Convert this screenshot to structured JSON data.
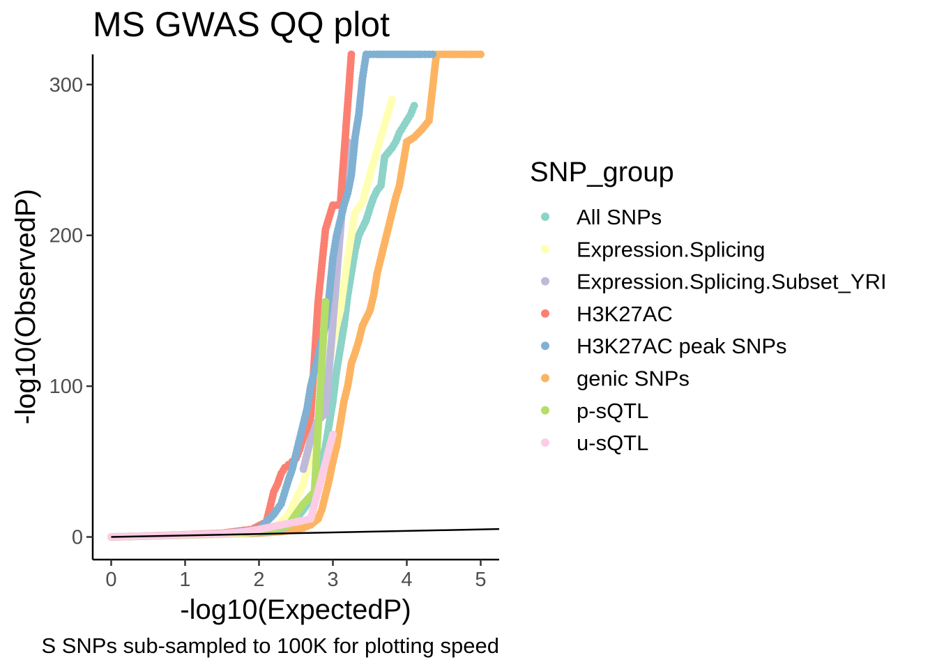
{
  "chart_data": {
    "type": "scatter",
    "title": "MS GWAS QQ plot",
    "xlabel": "-log10(ExpectedP)",
    "ylabel": "-log10(ObservedP)",
    "caption": "S SNPs sub-sampled to 100K for plotting speed",
    "xlim": [
      -0.25,
      5.25
    ],
    "ylim": [
      -15,
      320
    ],
    "x_ticks": [
      0,
      1,
      2,
      3,
      4,
      5
    ],
    "y_ticks": [
      0,
      100,
      200,
      300
    ],
    "grid": false,
    "reference_line": {
      "x": [
        0,
        5.25
      ],
      "y": [
        0,
        5.25
      ]
    },
    "legend": {
      "title": "SNP_group",
      "placement": "right",
      "entries": [
        {
          "name": "All SNPs",
          "color": "#8DD3C7"
        },
        {
          "name": "Expression.Splicing",
          "color": "#FFFFB3"
        },
        {
          "name": "Expression.Splicing.Subset_YRI",
          "color": "#BEBADA"
        },
        {
          "name": "H3K27AC",
          "color": "#FB8072"
        },
        {
          "name": "H3K27AC peak SNPs",
          "color": "#80B1D3"
        },
        {
          "name": "genic SNPs",
          "color": "#FDB462"
        },
        {
          "name": "p-sQTL",
          "color": "#B3DE69"
        },
        {
          "name": "u-sQTL",
          "color": "#FCCDE5"
        }
      ]
    },
    "series": [
      {
        "name": "genic SNPs",
        "color": "#FDB462",
        "x": [
          0.0,
          0.5,
          1.0,
          1.5,
          2.0,
          2.3,
          2.5,
          2.6,
          2.7,
          2.8,
          2.85,
          2.9,
          2.95,
          3.0,
          3.05,
          3.1,
          3.15,
          3.2,
          3.25,
          3.3,
          3.35,
          3.4,
          3.45,
          3.5,
          3.55,
          3.6,
          3.65,
          3.7,
          3.75,
          3.8,
          3.85,
          3.9,
          4.0,
          4.1,
          4.2,
          4.3,
          4.4,
          4.5,
          4.7,
          5.0
        ],
        "y": [
          0.0,
          0.6,
          1.2,
          1.8,
          2.5,
          3.5,
          5,
          6,
          8,
          12,
          18,
          28,
          38,
          50,
          60,
          75,
          90,
          100,
          115,
          122,
          130,
          140,
          145,
          150,
          160,
          175,
          185,
          195,
          205,
          215,
          225,
          233,
          262,
          265,
          270,
          276,
          320,
          320,
          320,
          320
        ]
      },
      {
        "name": "All SNPs",
        "color": "#8DD3C7",
        "x": [
          0.0,
          0.5,
          1.0,
          1.5,
          2.0,
          2.3,
          2.5,
          2.6,
          2.7,
          2.75,
          2.8,
          2.85,
          2.9,
          2.95,
          3.0,
          3.05,
          3.1,
          3.15,
          3.2,
          3.25,
          3.3,
          3.35,
          3.4,
          3.45,
          3.5,
          3.55,
          3.6,
          3.65,
          3.7,
          3.75,
          3.8,
          3.85,
          3.9,
          3.95,
          4.0,
          4.05,
          4.1
        ],
        "y": [
          0.0,
          0.6,
          1.2,
          1.9,
          3,
          5,
          12,
          18,
          25,
          30,
          40,
          50,
          60,
          75,
          90,
          110,
          125,
          140,
          160,
          175,
          190,
          200,
          205,
          210,
          218,
          225,
          230,
          233,
          252,
          255,
          258,
          262,
          268,
          272,
          276,
          280,
          286
        ]
      },
      {
        "name": "Expression.Splicing",
        "color": "#FFFFB3",
        "x": [
          0.0,
          0.6,
          1.2,
          1.8,
          2.2,
          2.4,
          2.5,
          2.6,
          2.7,
          2.8,
          2.9,
          3.0,
          3.1,
          3.2,
          3.3,
          3.4,
          3.5,
          3.8
        ],
        "y": [
          0.0,
          0.7,
          1.4,
          2.5,
          5,
          15,
          25,
          35,
          55,
          75,
          100,
          130,
          150,
          185,
          215,
          222,
          240,
          290
        ]
      },
      {
        "name": "Expression.Splicing.Subset_YRI",
        "color": "#BEBADA",
        "x": [
          2.6,
          2.75,
          2.9,
          3.2
        ],
        "y": [
          45,
          75,
          82,
          262
        ]
      },
      {
        "name": "H3K27AC",
        "color": "#FB8072",
        "x": [
          0.0,
          0.5,
          1.0,
          1.5,
          1.9,
          2.1,
          2.15,
          2.2,
          2.25,
          2.3,
          2.35,
          2.4,
          2.45,
          2.5,
          2.55,
          2.6,
          2.65,
          2.7,
          2.8,
          2.9,
          3.0,
          3.1,
          3.25
        ],
        "y": [
          0.0,
          0.7,
          1.5,
          2.5,
          5,
          10,
          20,
          30,
          35,
          42,
          46,
          48,
          50,
          52,
          58,
          66,
          72,
          80,
          156,
          204,
          220,
          220,
          320
        ]
      },
      {
        "name": "H3K27AC peak SNPs",
        "color": "#80B1D3",
        "x": [
          0.0,
          0.5,
          1.0,
          1.5,
          2.0,
          2.2,
          2.3,
          2.35,
          2.4,
          2.45,
          2.5,
          2.55,
          2.6,
          2.65,
          2.7,
          2.75,
          2.8,
          2.85,
          2.9,
          2.95,
          3.0,
          3.05,
          3.1,
          3.15,
          3.2,
          3.25,
          3.3,
          3.35,
          3.4,
          3.45,
          3.5,
          3.6,
          3.8,
          4.0,
          4.2,
          4.35
        ],
        "y": [
          0.0,
          0.6,
          1.3,
          2.2,
          5,
          15,
          22,
          30,
          38,
          45,
          55,
          65,
          75,
          85,
          100,
          110,
          120,
          130,
          140,
          160,
          185,
          200,
          210,
          220,
          228,
          240,
          265,
          280,
          304,
          320,
          320,
          320,
          320,
          320,
          320,
          320
        ]
      },
      {
        "name": "p-sQTL",
        "color": "#B3DE69",
        "x": [
          0.0,
          0.6,
          1.2,
          1.8,
          2.2,
          2.4,
          2.6,
          2.75,
          2.9
        ],
        "y": [
          0.0,
          0.8,
          1.6,
          3,
          5,
          8,
          22,
          30,
          156
        ]
      },
      {
        "name": "u-sQTL",
        "color": "#FCCDE5",
        "x": [
          0.0,
          0.3,
          0.6,
          0.9,
          1.2,
          1.5,
          1.8,
          2.0,
          2.2,
          2.4,
          2.5,
          2.6,
          2.7,
          3.0
        ],
        "y": [
          0.0,
          0.4,
          0.8,
          1.2,
          1.7,
          2.2,
          3.5,
          5,
          7,
          9,
          10,
          11,
          12,
          68
        ]
      }
    ]
  }
}
